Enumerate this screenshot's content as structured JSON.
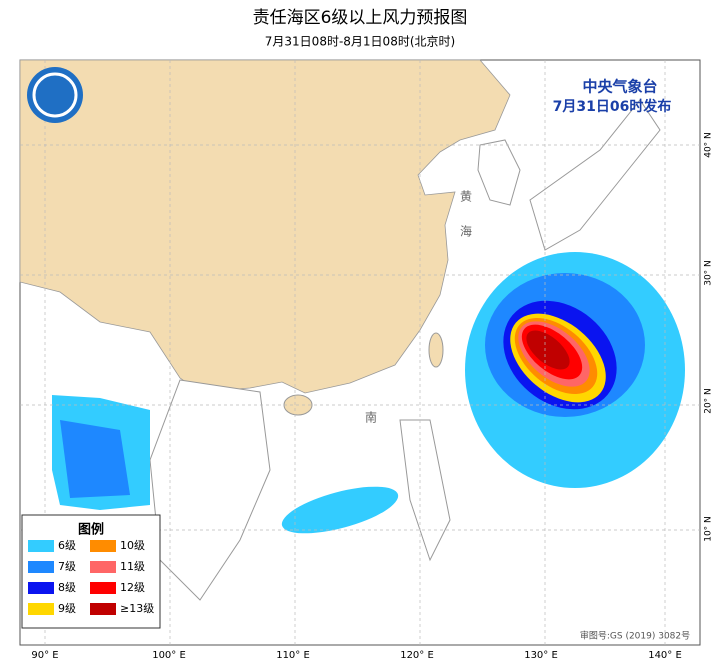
{
  "header": {
    "title": "责任海区6级以上风力预报图",
    "subtitle": "7月31日08时-8月1日08时(北京时)"
  },
  "issuer": {
    "name": "中央气象台",
    "time": "7月31日06时发布"
  },
  "map_labels": [
    "黄",
    "海",
    "南"
  ],
  "legend": {
    "title": "图例",
    "items": [
      {
        "label": "6级",
        "color": "#33ccff"
      },
      {
        "label": "10级",
        "color": "#ff8c00"
      },
      {
        "label": "7级",
        "color": "#1e88ff"
      },
      {
        "label": "11级",
        "color": "#ff6666"
      },
      {
        "label": "8级",
        "color": "#0a14f0"
      },
      {
        "label": "12级",
        "color": "#ff0000"
      },
      {
        "label": "9级",
        "color": "#ffd700"
      },
      {
        "label": "≥13级",
        "color": "#c00000"
      }
    ]
  },
  "longitude_labels": [
    "90° E",
    "100° E",
    "110° E",
    "120° E",
    "130° E",
    "140° E"
  ],
  "latitude_labels": [
    "40° N",
    "30° N",
    "20° N",
    "10° N"
  ],
  "footer": "审图号:GS (2019) 3082号"
}
